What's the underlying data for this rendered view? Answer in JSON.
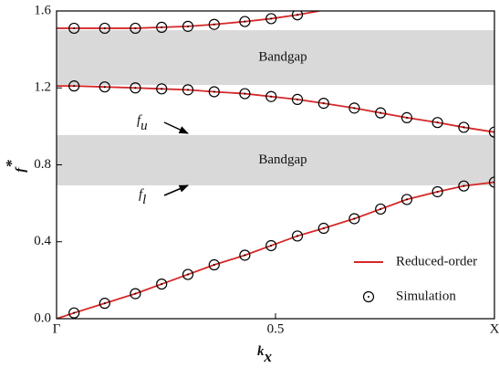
{
  "chart_data": {
    "type": "dispersion",
    "xlabel": {
      "text": "k",
      "subscript": "x"
    },
    "ylabel": {
      "text": "f",
      "superscript": "*"
    },
    "xlim": [
      0,
      1
    ],
    "xticks": [
      {
        "value": 0,
        "label": "Γ"
      },
      0.5,
      {
        "value": 1,
        "label": "X"
      }
    ],
    "ylim": [
      0,
      1.6
    ],
    "yticks": [
      {
        "value": 0,
        "label": "0.0"
      },
      0.4,
      0.8,
      1.2,
      1.6
    ],
    "bands": [
      {
        "label": "Bandgap",
        "range": [
          1.215,
          1.5
        ],
        "color": "#d9d9d9"
      },
      {
        "label": "Bandgap",
        "range": [
          0.693,
          0.955
        ],
        "color": "#d9d9d9"
      }
    ],
    "annotations": [
      {
        "text": "f",
        "subscript": "u"
      },
      {
        "text": "f",
        "subscript": "l"
      }
    ],
    "legend": "lower right",
    "series": [
      {
        "name": "Reduced-order",
        "style": "line",
        "color": "#d62728",
        "branches": [
          {
            "x": [
              0,
              0.04,
              0.11,
              0.18,
              0.24,
              0.3,
              0.36,
              0.43,
              0.49,
              0.55,
              0.61,
              0.68,
              0.74,
              0.8,
              0.87,
              0.93,
              1.0
            ],
            "values": [
              0,
              0.03,
              0.08,
              0.13,
              0.18,
              0.23,
              0.28,
              0.33,
              0.38,
              0.43,
              0.47,
              0.52,
              0.57,
              0.62,
              0.66,
              0.69,
              0.71
            ]
          },
          {
            "x": [
              0,
              0.04,
              0.11,
              0.18,
              0.24,
              0.3,
              0.36,
              0.43,
              0.49,
              0.55,
              0.61,
              0.68,
              0.74,
              0.8,
              0.87,
              0.93,
              1.0
            ],
            "values": [
              1.21,
              1.21,
              1.205,
              1.2,
              1.195,
              1.19,
              1.18,
              1.17,
              1.155,
              1.14,
              1.12,
              1.095,
              1.07,
              1.045,
              1.02,
              0.995,
              0.97
            ]
          },
          {
            "x": [
              0,
              0.04,
              0.11,
              0.18,
              0.24,
              0.3,
              0.36,
              0.43,
              0.49,
              0.55,
              0.6
            ],
            "values": [
              1.51,
              1.51,
              1.51,
              1.51,
              1.515,
              1.52,
              1.53,
              1.545,
              1.56,
              1.58,
              1.6
            ]
          }
        ]
      },
      {
        "name": "Simulation",
        "style": "marker",
        "color": "#000000",
        "branches": [
          {
            "x": [
              0.04,
              0.11,
              0.18,
              0.24,
              0.3,
              0.36,
              0.43,
              0.49,
              0.55,
              0.61,
              0.68,
              0.74,
              0.8,
              0.87,
              0.93,
              1.0
            ],
            "values": [
              0.03,
              0.08,
              0.13,
              0.18,
              0.23,
              0.28,
              0.33,
              0.38,
              0.43,
              0.47,
              0.52,
              0.57,
              0.62,
              0.66,
              0.69,
              0.71
            ]
          },
          {
            "x": [
              0.04,
              0.11,
              0.18,
              0.24,
              0.3,
              0.36,
              0.43,
              0.49,
              0.55,
              0.61,
              0.68,
              0.74,
              0.8,
              0.87,
              0.93,
              1.0
            ],
            "values": [
              1.21,
              1.205,
              1.2,
              1.195,
              1.19,
              1.18,
              1.17,
              1.155,
              1.14,
              1.12,
              1.095,
              1.07,
              1.045,
              1.02,
              0.995,
              0.97
            ]
          },
          {
            "x": [
              0.04,
              0.11,
              0.18,
              0.24,
              0.3,
              0.36,
              0.43,
              0.49,
              0.55
            ],
            "values": [
              1.51,
              1.51,
              1.51,
              1.515,
              1.52,
              1.53,
              1.545,
              1.56,
              1.58
            ]
          }
        ]
      }
    ]
  }
}
